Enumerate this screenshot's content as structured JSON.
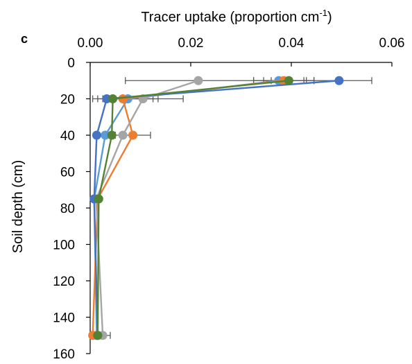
{
  "panel_label": "c",
  "chart_data": {
    "type": "line",
    "title": "",
    "xlabel_main": "Tracer uptake (proportion cm",
    "xlabel_sup": "-1",
    "xlabel_end": ")",
    "ylabel": "Soil depth (cm)",
    "xlim": [
      0,
      0.06
    ],
    "ylim": [
      0,
      160
    ],
    "x_ticks": [
      "0.00",
      "0.02",
      "0.04",
      "0.06"
    ],
    "y_ticks": [
      "0",
      "20",
      "40",
      "60",
      "80",
      "100",
      "120",
      "140",
      "160"
    ],
    "x_axis_position": "top",
    "y_axis_inverted": true,
    "grid": false,
    "legend": "none",
    "depths": [
      10,
      20,
      40,
      75,
      150
    ],
    "series": [
      {
        "color": "#5b9bd5",
        "x": [
          0.0375,
          0.0075,
          0.003,
          0.0008,
          0.0013
        ],
        "err": [
          0.005,
          0.006,
          0.0,
          0.0,
          0.0
        ]
      },
      {
        "color": "#ed7d31",
        "x": [
          0.0385,
          0.0065,
          0.0085,
          0.0015,
          0.0005
        ],
        "err": [
          0.006,
          0.006,
          0.0035,
          0.0,
          0.0
        ]
      },
      {
        "color": "#a5a5a5",
        "x": [
          0.0215,
          0.0105,
          0.0065,
          0.0012,
          0.0025
        ],
        "err": [
          0.0145,
          0.008,
          0.0,
          0.0,
          0.0015
        ]
      },
      {
        "color": "#4472c4",
        "x": [
          0.0495,
          0.0033,
          0.0013,
          0.0008,
          0.0015
        ],
        "err": [
          0.0065,
          0.0,
          0.0,
          0.0,
          0.0
        ]
      },
      {
        "color": "#548235",
        "x": [
          0.0395,
          0.0045,
          0.0043,
          0.0017,
          0.0015
        ],
        "err": [
          0.005,
          0.0,
          0.0,
          0.0,
          0.0
        ]
      }
    ],
    "error_bar_color": "#595959"
  }
}
